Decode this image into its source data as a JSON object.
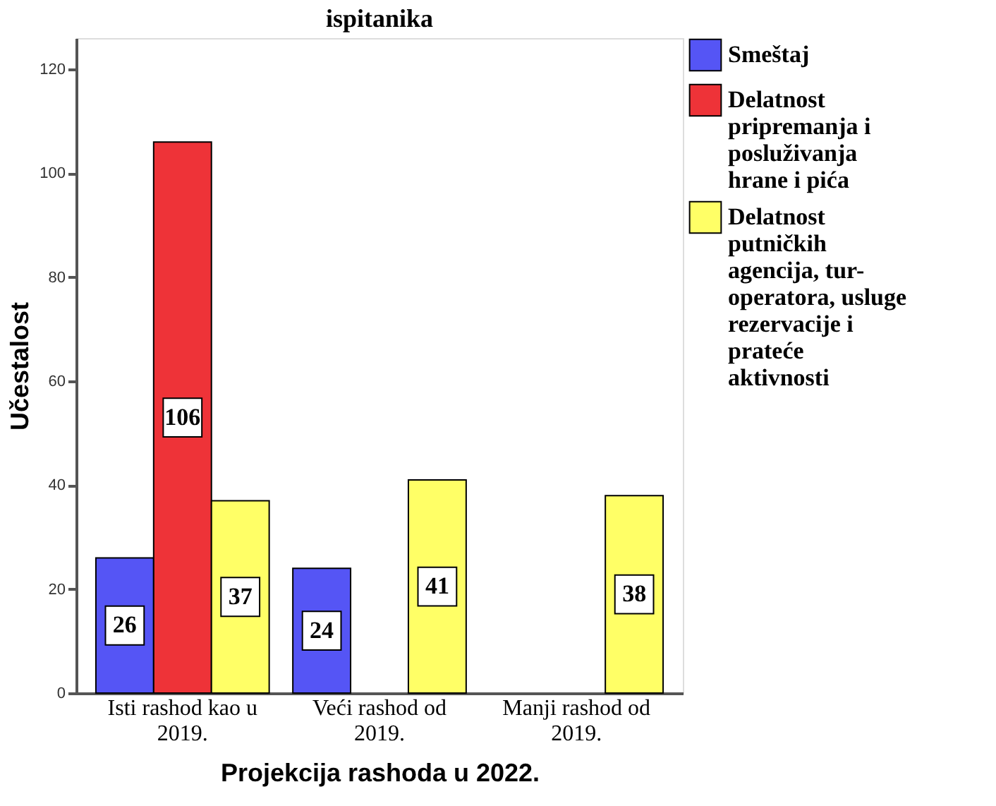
{
  "chart_data": {
    "type": "bar",
    "title": "ispitanika",
    "xlabel": "Projekcija rashoda u 2022.",
    "ylabel": "Učestalost",
    "categories": [
      "Isti rashod kao u 2019.",
      "Veći rashod od 2019.",
      "Manji rashod od 2019."
    ],
    "series": [
      {
        "name": "Smeštaj",
        "color": "#5555f5",
        "values": [
          26,
          24,
          null
        ]
      },
      {
        "name": "Delatnost pripremanja i posluživanja hrane i pića",
        "color": "#ee3338",
        "values": [
          106,
          null,
          null
        ]
      },
      {
        "name": "Delatnost putničkih agencija, tur-operatora, usluge rezervacije i prateće aktivnosti",
        "color": "#ffff66",
        "values": [
          37,
          41,
          38
        ]
      }
    ],
    "ylim": [
      0,
      126
    ],
    "yticks": [
      0,
      20,
      40,
      60,
      80,
      100,
      120
    ],
    "grid": false,
    "legend": "right",
    "data_labels": true
  }
}
